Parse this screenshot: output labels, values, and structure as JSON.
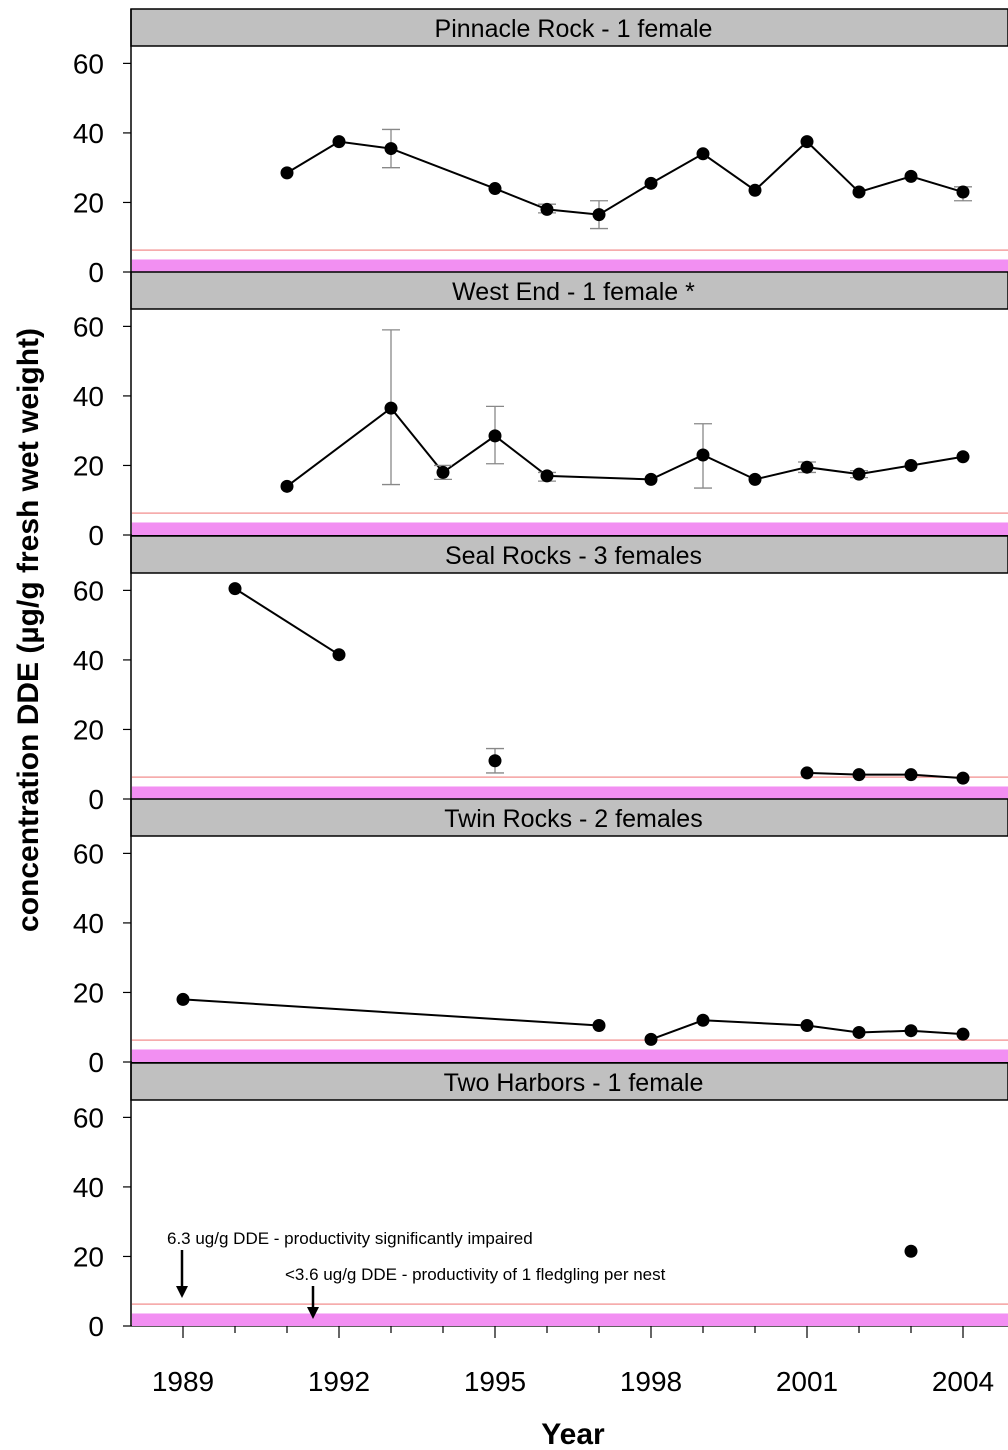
{
  "chart_data": {
    "type": "line",
    "xlabel": "Year",
    "ylabel": "concentration DDE (µg/g fresh wet weight)",
    "ylim": [
      0,
      65
    ],
    "xlim": [
      1988,
      2004.9
    ],
    "x_ticks": [
      1989,
      1992,
      1995,
      1998,
      2001,
      2004
    ],
    "y_ticks": [
      0,
      20,
      40,
      60
    ],
    "thresholds": [
      {
        "value": 6.3,
        "color": "#f4a0a0",
        "label": "6.3 ug/g DDE - productivity significantly impaired"
      },
      {
        "value": 3.6,
        "color": "#f28ff2",
        "label": "<3.6 ug/g DDE - productivity of 1 fledgling per nest",
        "band": true
      }
    ],
    "annotations": [
      {
        "text": "6.3 ug/g DDE - productivity significantly impaired",
        "arrow_x": 1989
      },
      {
        "text": "<3.6 ug/g DDE - productivity of 1 fledgling per nest",
        "arrow_x": 1991.5
      }
    ],
    "panels": [
      {
        "title": "Pinnacle Rock - 1 female",
        "segments": [
          [
            1991,
            1992,
            1993,
            1995,
            1996,
            1997,
            1998,
            1999,
            2000,
            2001,
            2002,
            2003,
            2004
          ]
        ],
        "points": [
          {
            "x": 1991,
            "y": 28.5
          },
          {
            "x": 1992,
            "y": 37.5
          },
          {
            "x": 1993,
            "y": 35.5,
            "err": [
              30,
              41
            ]
          },
          {
            "x": 1995,
            "y": 24
          },
          {
            "x": 1996,
            "y": 18,
            "err": [
              17,
              19.5
            ]
          },
          {
            "x": 1997,
            "y": 16.5,
            "err": [
              12.5,
              20.5
            ]
          },
          {
            "x": 1998,
            "y": 25.5
          },
          {
            "x": 1999,
            "y": 34
          },
          {
            "x": 2000,
            "y": 23.5
          },
          {
            "x": 2001,
            "y": 37.5
          },
          {
            "x": 2002,
            "y": 23
          },
          {
            "x": 2003,
            "y": 27.5
          },
          {
            "x": 2004,
            "y": 23,
            "err": [
              20.5,
              24.5
            ]
          }
        ]
      },
      {
        "title": "West End - 1 female *",
        "segments": [
          [
            1991,
            1993,
            1994,
            1995,
            1996,
            1998,
            1999,
            2000,
            2001,
            2002,
            2003,
            2004
          ]
        ],
        "points": [
          {
            "x": 1991,
            "y": 14
          },
          {
            "x": 1993,
            "y": 36.5,
            "err": [
              14.5,
              59
            ]
          },
          {
            "x": 1994,
            "y": 18,
            "err": [
              16,
              20
            ]
          },
          {
            "x": 1995,
            "y": 28.5,
            "err": [
              20.5,
              37
            ]
          },
          {
            "x": 1996,
            "y": 17,
            "err": [
              15.5,
              18
            ]
          },
          {
            "x": 1998,
            "y": 16
          },
          {
            "x": 1999,
            "y": 23,
            "err": [
              13.5,
              32
            ]
          },
          {
            "x": 2000,
            "y": 16
          },
          {
            "x": 2001,
            "y": 19.5,
            "err": [
              18,
              21
            ]
          },
          {
            "x": 2002,
            "y": 17.5,
            "err": [
              16.5,
              18.5
            ]
          },
          {
            "x": 2003,
            "y": 20
          },
          {
            "x": 2004,
            "y": 22.5
          }
        ]
      },
      {
        "title": "Seal Rocks - 3 females",
        "segments": [
          [
            1990,
            1992
          ],
          [
            2001,
            2002,
            2003,
            2004
          ]
        ],
        "points": [
          {
            "x": 1990,
            "y": 60.5
          },
          {
            "x": 1992,
            "y": 41.5
          },
          {
            "x": 1995,
            "y": 11,
            "err": [
              7.5,
              14.5
            ]
          },
          {
            "x": 2001,
            "y": 7.5
          },
          {
            "x": 2002,
            "y": 7
          },
          {
            "x": 2003,
            "y": 7
          },
          {
            "x": 2004,
            "y": 6
          }
        ]
      },
      {
        "title": "Twin Rocks - 2 females",
        "segments": [
          [
            1989,
            1997
          ],
          [
            1998,
            1999,
            2001,
            2002,
            2003,
            2004
          ]
        ],
        "points": [
          {
            "x": 1989,
            "y": 18
          },
          {
            "x": 1997,
            "y": 10.5
          },
          {
            "x": 1998,
            "y": 6.5
          },
          {
            "x": 1999,
            "y": 12
          },
          {
            "x": 2001,
            "y": 10.5
          },
          {
            "x": 2002,
            "y": 8.5
          },
          {
            "x": 2003,
            "y": 9
          },
          {
            "x": 2004,
            "y": 8
          }
        ]
      },
      {
        "title": "Two Harbors - 1 female",
        "segments": [],
        "points": [
          {
            "x": 2003,
            "y": 21.5
          }
        ]
      }
    ]
  }
}
